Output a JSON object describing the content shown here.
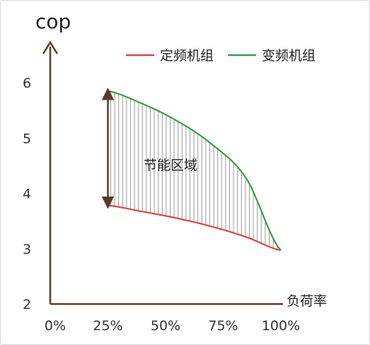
{
  "chart_data": {
    "type": "line",
    "ylabel": "cop",
    "xlabel": "负荷率",
    "x": [
      0.25,
      0.4,
      0.55,
      0.7,
      0.85,
      1.0
    ],
    "x_ticks": [
      "0%",
      "25%",
      "50%",
      "75%",
      "100%"
    ],
    "x_tick_values": [
      0,
      0.25,
      0.5,
      0.75,
      1.0
    ],
    "y_ticks": [
      "2",
      "3",
      "4",
      "5",
      "6"
    ],
    "y_tick_values": [
      2,
      3,
      4,
      5,
      6
    ],
    "xlim": [
      0,
      1.0
    ],
    "ylim": [
      2,
      6.8
    ],
    "series": [
      {
        "name": "定频机组",
        "color": "#d64545",
        "values": [
          3.78,
          3.67,
          3.55,
          3.4,
          3.21,
          2.97
        ]
      },
      {
        "name": "变频机组",
        "color": "#3f9a4c",
        "values": [
          5.85,
          5.62,
          5.31,
          4.89,
          4.27,
          2.97
        ]
      }
    ],
    "annotation": "节能区域",
    "axis_color": "#5a3a2a",
    "hatch_color": "#9a9a9a",
    "grid": false,
    "legend_position": "top-right"
  }
}
